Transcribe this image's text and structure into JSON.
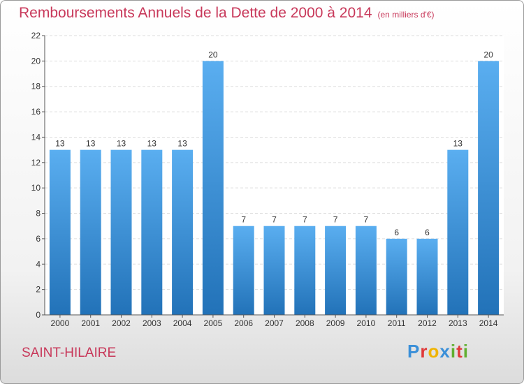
{
  "title": "Remboursements Annuels de la Dette de 2000 à 2014",
  "subtitle": "(en milliers d'€)",
  "city": "SAINT-HILAIRE",
  "logo": {
    "letters": [
      "P",
      "r",
      "o",
      "x",
      "i",
      "t",
      "i"
    ],
    "colors": [
      "#3a8fd8",
      "#e03a3a",
      "#f0b400",
      "#3a8fd8",
      "#60b030",
      "#e03a3a",
      "#60b030"
    ]
  },
  "colors": {
    "bar_top": "#5aaef0",
    "bar_bottom": "#2272b8",
    "text": "#c8385a"
  },
  "chart_data": {
    "type": "bar",
    "categories": [
      "2000",
      "2001",
      "2002",
      "2003",
      "2004",
      "2005",
      "2006",
      "2007",
      "2008",
      "2009",
      "2010",
      "2011",
      "2012",
      "2013",
      "2014"
    ],
    "values": [
      13,
      13,
      13,
      13,
      13,
      20,
      7,
      7,
      7,
      7,
      7,
      6,
      6,
      13,
      20
    ],
    "ylim": [
      0,
      22
    ],
    "yticks": [
      0,
      2,
      4,
      6,
      8,
      10,
      12,
      14,
      16,
      18,
      20,
      22
    ],
    "grid": true
  }
}
